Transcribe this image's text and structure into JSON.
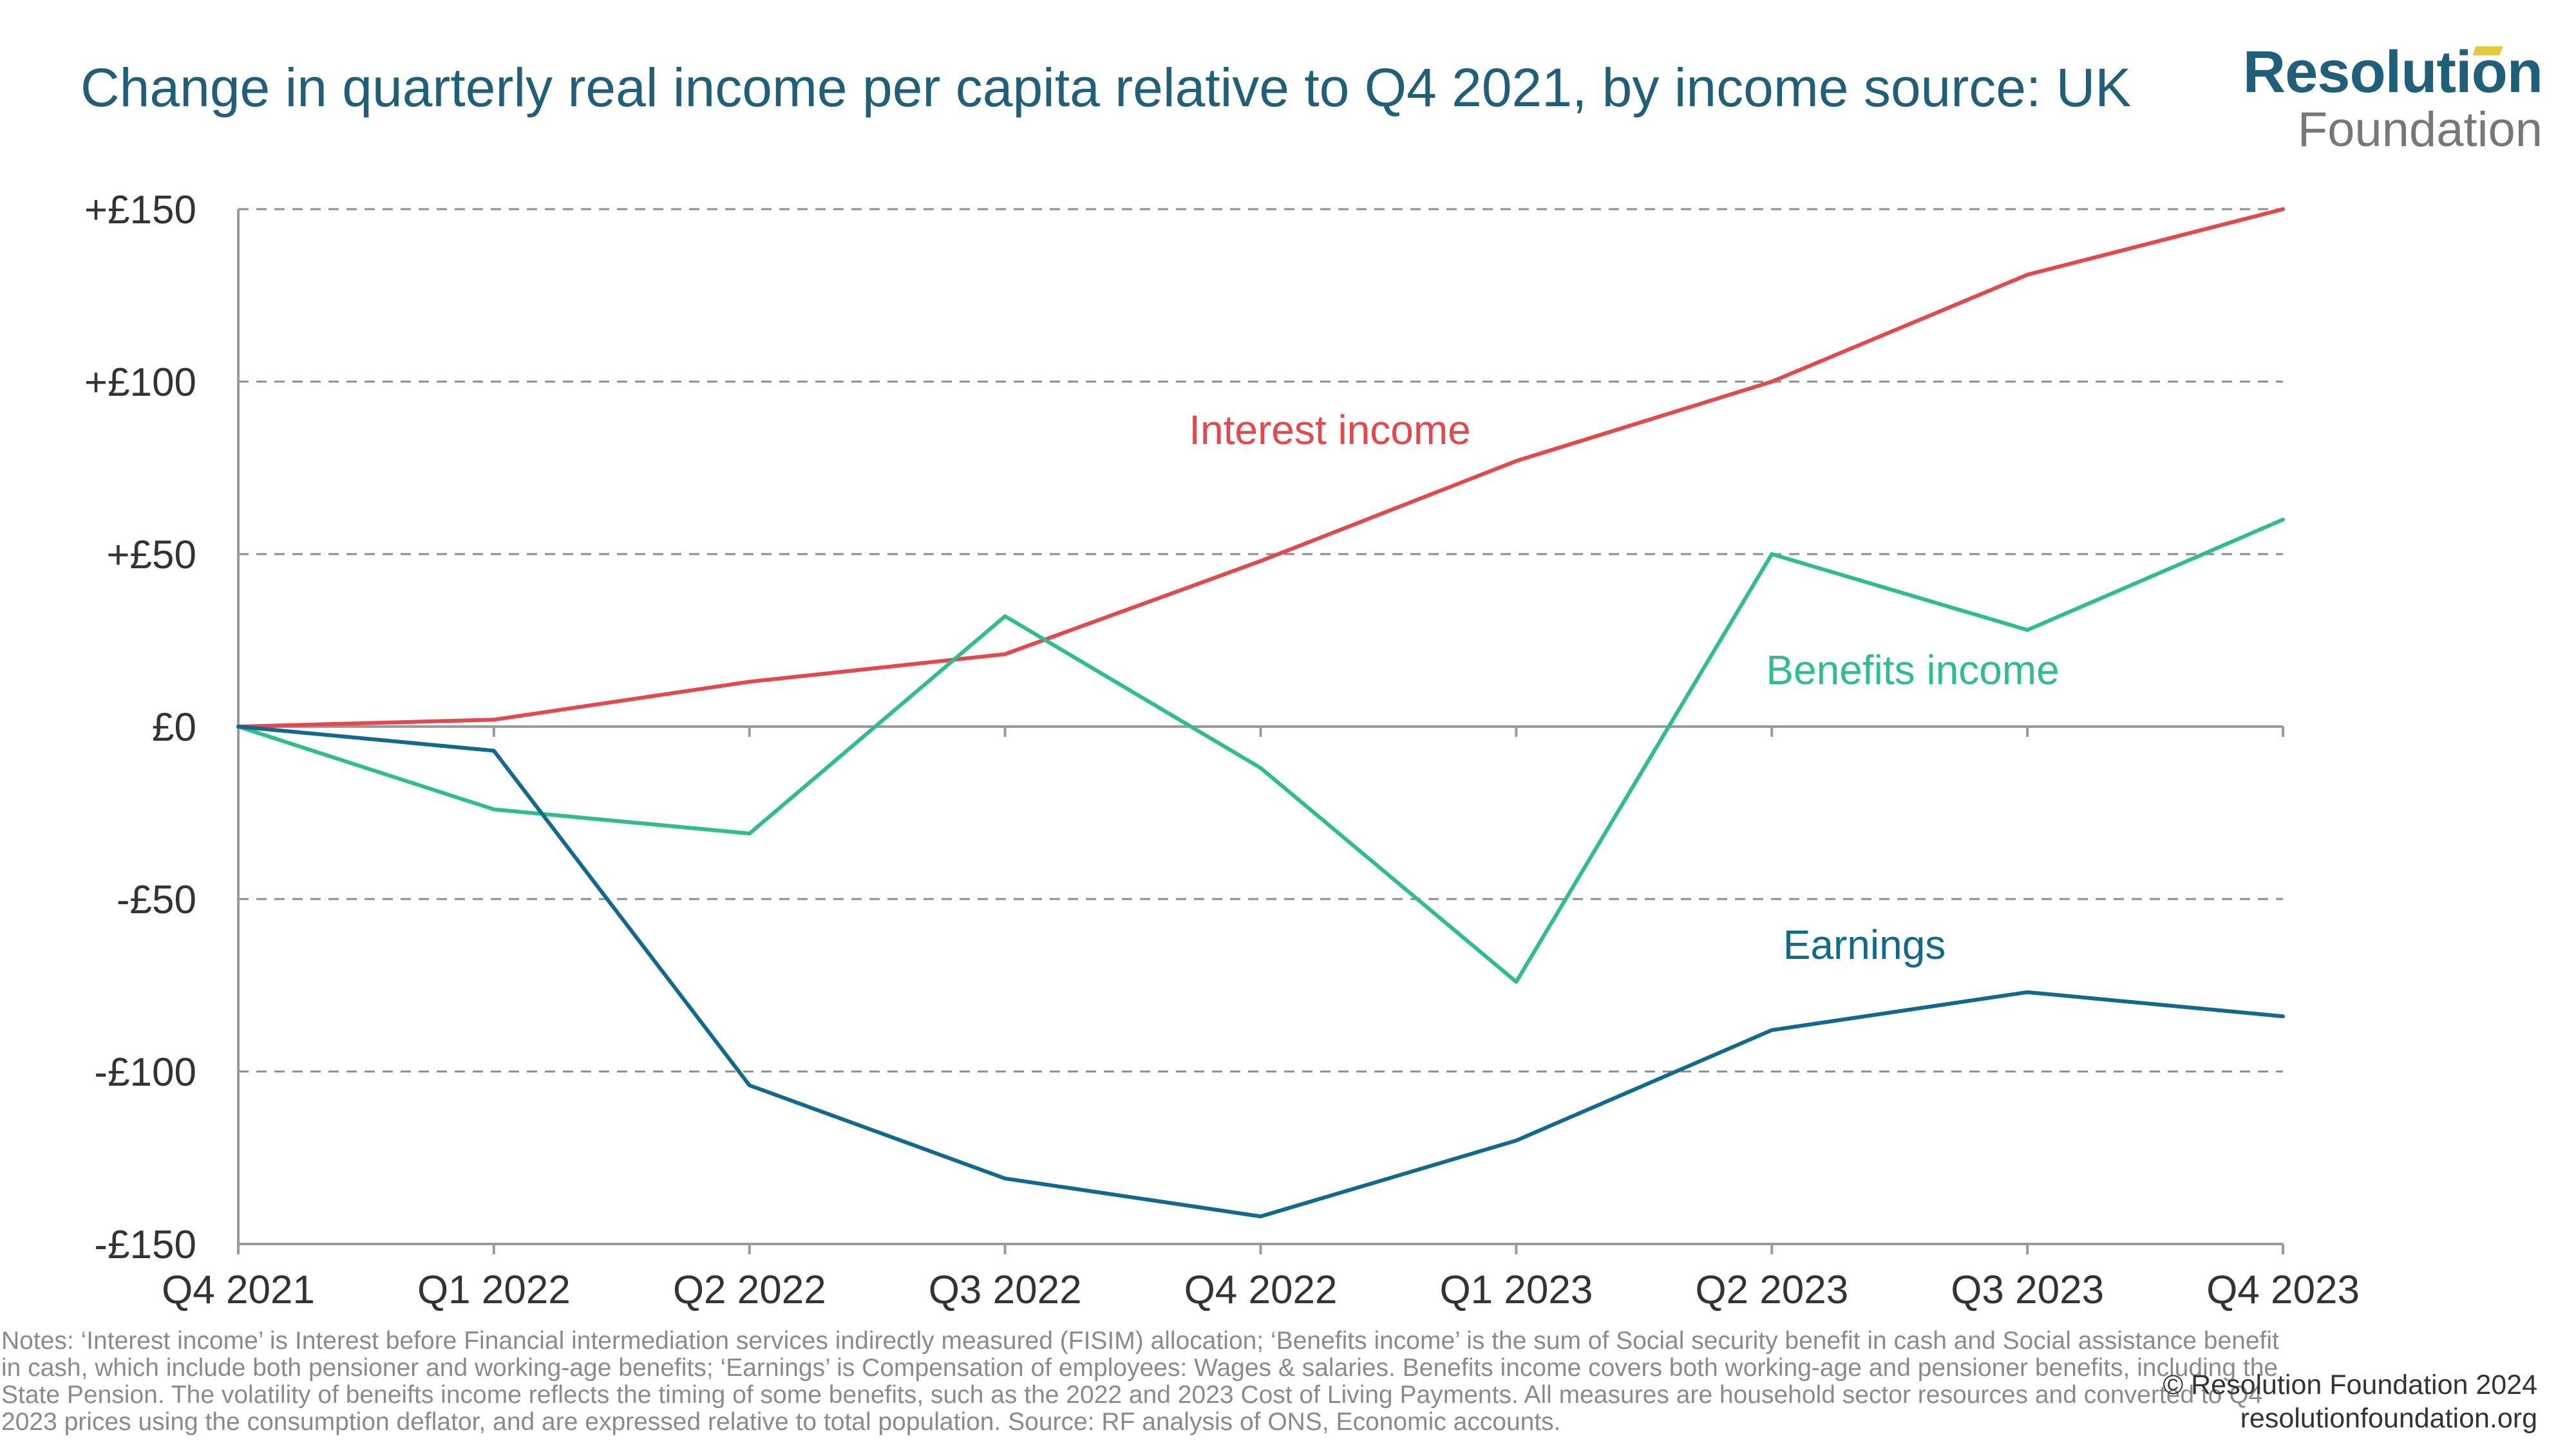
{
  "title": "Change in quarterly real income per capita relative to Q4 2021, by income source: UK",
  "logo": {
    "line1": "Resolution",
    "line2": "Foundation"
  },
  "notes": "Notes: ‘Interest income’ is Interest before Financial intermediation services indirectly measured (FISIM) allocation; ‘Benefits income’ is the sum of Social security benefit in cash and Social assistance benefit in cash, which include both pensioner and working-age benefits; ‘Earnings’ is Compensation of employees: Wages & salaries. Benefits income covers both working-age and pensioner benefits, including the State Pension. The volatility of beneifts income reflects the timing of some benefits, such as the 2022 and 2023 Cost of Living Payments. All measures are household sector resources and converted to Q4 2023 prices using the consumption deflator, and are expressed relative to total population. Source: RF analysis of ONS, Economic accounts.",
  "copyright": {
    "line1": "© Resolution Foundation 2024",
    "line2": "resolutionfoundation.org"
  },
  "colors": {
    "interest": "#e5474b",
    "benefits": "#2dbe8c",
    "earnings": "#10698e",
    "grid": "#8c8c8c",
    "axis": "#9a9a9a",
    "text": "#333333",
    "title": "#1f5f7a"
  },
  "chart_data": {
    "type": "line",
    "title": "Change in quarterly real income per capita relative to Q4 2021, by income source: UK",
    "xlabel": "",
    "ylabel": "",
    "categories": [
      "Q4 2021",
      "Q1 2022",
      "Q2 2022",
      "Q3 2022",
      "Q4 2022",
      "Q1 2023",
      "Q2 2023",
      "Q3 2023",
      "Q4 2023"
    ],
    "ylim": [
      -150,
      150
    ],
    "yticks": [
      150,
      100,
      50,
      0,
      -50,
      -100,
      -150
    ],
    "ytick_labels": [
      "+£150",
      "+£100",
      "+£50",
      "£0",
      "-£50",
      "-£100",
      "-£150"
    ],
    "grid": "horizontal dashed",
    "legend": "inline labels",
    "series": [
      {
        "name": "Interest income",
        "color": "#e5474b",
        "values": [
          0,
          2,
          13,
          21,
          48,
          77,
          100,
          131,
          150
        ]
      },
      {
        "name": "Benefits income",
        "color": "#2dbe8c",
        "values": [
          0,
          -24,
          -31,
          32,
          -12,
          -74,
          50,
          28,
          60
        ]
      },
      {
        "name": "Earnings",
        "color": "#10698e",
        "values": [
          0,
          -7,
          -104,
          -131,
          -142,
          -120,
          -88,
          -77,
          -84
        ]
      }
    ]
  }
}
